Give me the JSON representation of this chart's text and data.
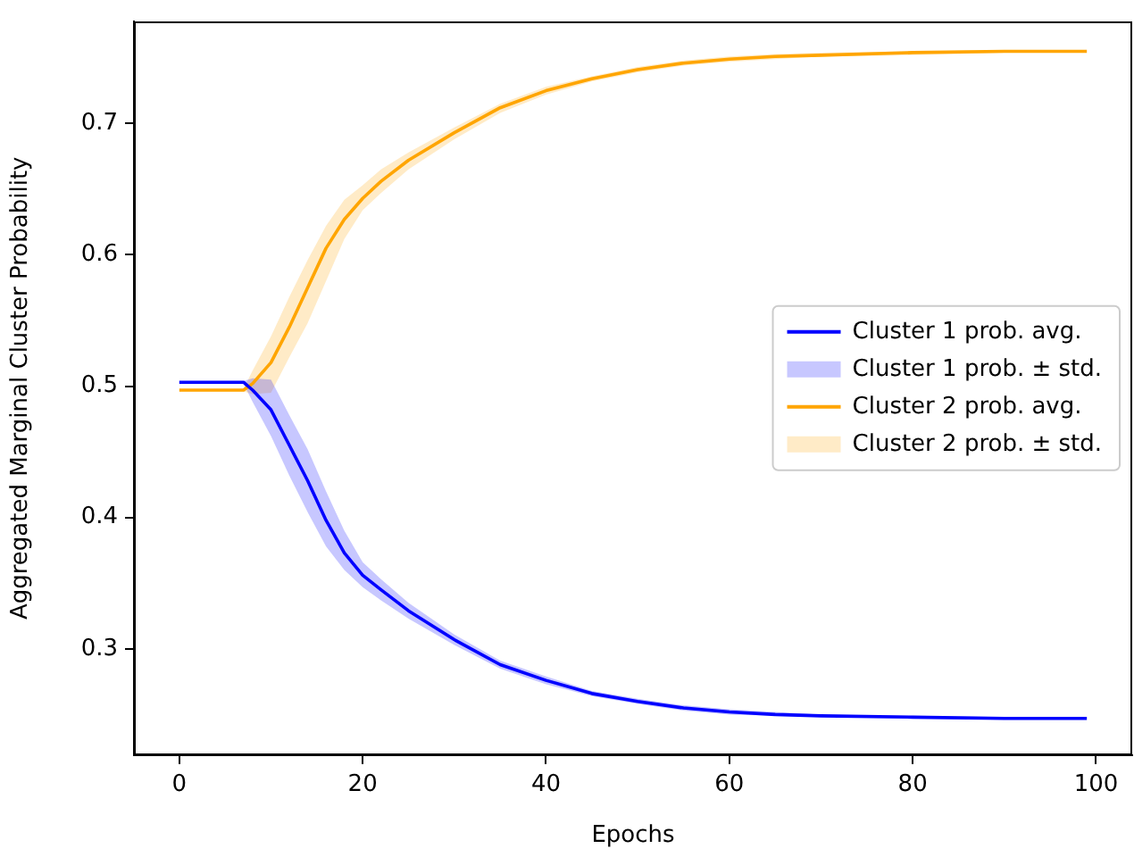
{
  "chart_data": {
    "type": "line",
    "xlabel": "Epochs",
    "ylabel": "Aggregated Marginal Cluster Probability",
    "x": [
      0,
      7,
      8,
      10,
      12,
      14,
      16,
      18,
      20,
      22,
      25,
      30,
      35,
      40,
      45,
      50,
      55,
      60,
      65,
      70,
      80,
      90,
      99
    ],
    "series": [
      {
        "name": "Cluster 1 prob. avg.",
        "color": "#0000ff",
        "values": [
          0.503,
          0.503,
          0.497,
          0.482,
          0.455,
          0.428,
          0.398,
          0.373,
          0.356,
          0.345,
          0.329,
          0.307,
          0.288,
          0.276,
          0.266,
          0.26,
          0.255,
          0.252,
          0.25,
          0.249,
          0.248,
          0.247,
          0.247
        ],
        "lower": [
          0.502,
          0.502,
          0.488,
          0.462,
          0.432,
          0.404,
          0.378,
          0.36,
          0.347,
          0.337,
          0.323,
          0.303,
          0.285,
          0.273,
          0.264,
          0.258,
          0.253,
          0.25,
          0.249,
          0.248,
          0.247,
          0.246,
          0.246
        ],
        "upper": [
          0.504,
          0.504,
          0.506,
          0.505,
          0.478,
          0.452,
          0.42,
          0.39,
          0.366,
          0.353,
          0.335,
          0.311,
          0.291,
          0.279,
          0.268,
          0.262,
          0.257,
          0.254,
          0.252,
          0.25,
          0.249,
          0.248,
          0.248
        ]
      },
      {
        "name": "Cluster 2 prob. avg.",
        "color": "#ffa500",
        "values": [
          0.497,
          0.497,
          0.502,
          0.518,
          0.545,
          0.575,
          0.605,
          0.627,
          0.643,
          0.656,
          0.672,
          0.693,
          0.712,
          0.725,
          0.734,
          0.741,
          0.746,
          0.749,
          0.751,
          0.752,
          0.754,
          0.755,
          0.755
        ],
        "lower": [
          0.496,
          0.496,
          0.494,
          0.495,
          0.522,
          0.548,
          0.58,
          0.612,
          0.634,
          0.647,
          0.665,
          0.688,
          0.708,
          0.722,
          0.732,
          0.739,
          0.744,
          0.747,
          0.749,
          0.751,
          0.752,
          0.754,
          0.754
        ],
        "upper": [
          0.498,
          0.498,
          0.512,
          0.538,
          0.568,
          0.596,
          0.622,
          0.642,
          0.653,
          0.665,
          0.678,
          0.697,
          0.715,
          0.728,
          0.736,
          0.743,
          0.748,
          0.751,
          0.753,
          0.754,
          0.755,
          0.756,
          0.756
        ]
      }
    ],
    "annotations": [
      "Cluster 1 prob. ± std.",
      "Cluster 2 prob. ± std."
    ],
    "xlim": [
      -4.95,
      103.95
    ],
    "ylim": [
      0.219,
      0.778
    ],
    "xticks": [
      0,
      20,
      40,
      60,
      80,
      100
    ],
    "yticks": [
      0.3,
      0.4,
      0.5,
      0.6,
      0.7
    ],
    "grid": false,
    "legend": "right"
  }
}
